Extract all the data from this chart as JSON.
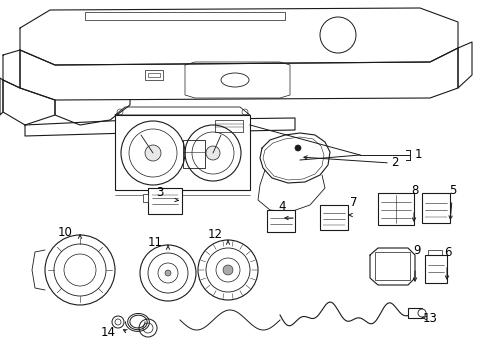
{
  "background_color": "#ffffff",
  "line_color": "#1a1a1a",
  "text_color": "#000000",
  "label_fontsize": 8.5,
  "figsize": [
    4.89,
    3.6
  ],
  "dpi": 100
}
